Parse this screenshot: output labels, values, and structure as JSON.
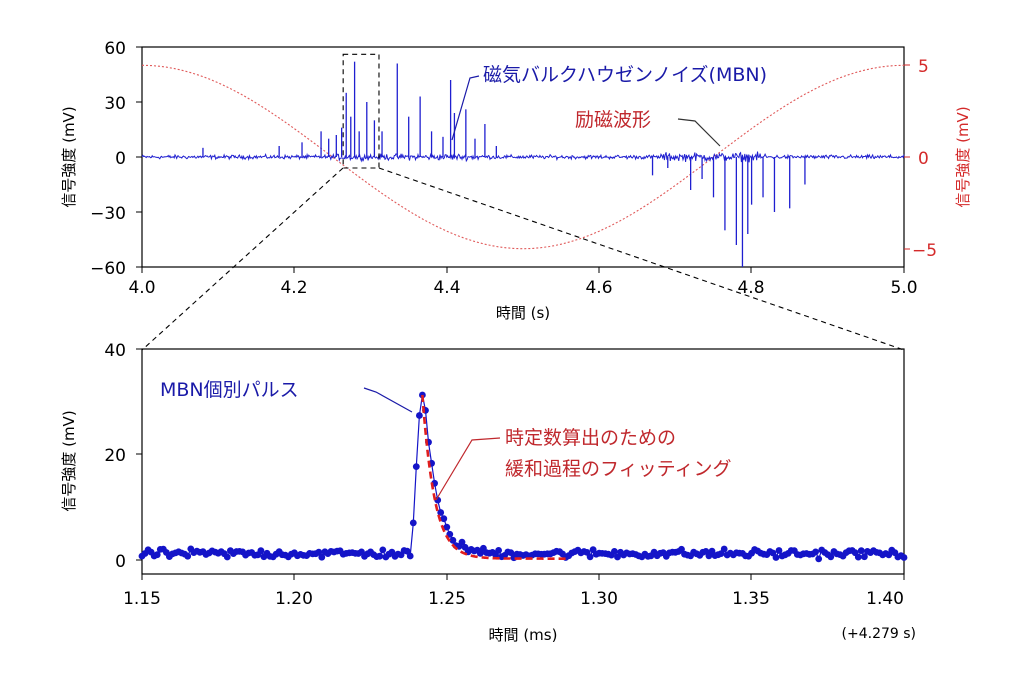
{
  "chart_data": [
    {
      "type": "line",
      "xlabel": "時間 (s)",
      "ylabel": "信号強度 (mV)",
      "ylabel_right": "信号強度 (mV)",
      "xlim": [
        4.0,
        5.0
      ],
      "ylim": [
        -60,
        60
      ],
      "ylim_right": [
        -6,
        6
      ],
      "x_ticks": [
        "4.0",
        "4.2",
        "4.4",
        "4.6",
        "4.8",
        "5.0"
      ],
      "y_ticks": [
        "60",
        "30",
        "0",
        "−30",
        "−60"
      ],
      "y_ticks_right": [
        "5",
        "0",
        "−5"
      ],
      "grid": false,
      "series": [
        {
          "name": "磁気バルクハウゼンノイズ(MBN)",
          "color": "#1f1fd0",
          "axis": "left",
          "noise_band": 1.5,
          "spikes_x": [
            4.08,
            4.18,
            4.21,
            4.235,
            4.245,
            4.255,
            4.262,
            4.268,
            4.274,
            4.279,
            4.285,
            4.295,
            4.305,
            4.315,
            4.335,
            4.35,
            4.365,
            4.38,
            4.395,
            4.405,
            4.41,
            4.425,
            4.437,
            4.45,
            4.465,
            4.67,
            4.69,
            4.72,
            4.735,
            4.75,
            4.765,
            4.78,
            4.788,
            4.795,
            4.8,
            4.815,
            4.83,
            4.85,
            4.87
          ],
          "spikes_y": [
            5,
            6,
            8,
            14,
            10,
            12,
            16,
            35,
            22,
            52,
            14,
            30,
            20,
            14,
            51,
            22,
            33,
            14,
            11,
            42,
            24,
            26,
            10,
            18,
            6,
            -10,
            -6,
            -18,
            -12,
            -22,
            -40,
            -48,
            -60,
            -42,
            -26,
            -22,
            -30,
            -28,
            -15
          ]
        },
        {
          "name": "励磁波形",
          "color": "#e05a5a",
          "axis": "right",
          "function": "sine",
          "amplitude": 5,
          "period": 1.0,
          "peak_x": 4.0
        }
      ],
      "zoom_box": {
        "x": [
          4.264,
          4.311
        ],
        "y": [
          -6,
          56
        ]
      },
      "annotations": [
        {
          "text": "磁気バルクハウゼンノイズ(MBN)",
          "color": "#1a1aa8"
        },
        {
          "text": "励磁波形",
          "color": "#c0282d"
        }
      ]
    },
    {
      "type": "line",
      "xlabel": "時間 (ms)",
      "ylabel": "信号強度 (mV)",
      "xlim": [
        1.15,
        1.4
      ],
      "ylim": [
        -4,
        40
      ],
      "x_ticks": [
        "1.15",
        "1.20",
        "1.25",
        "1.30",
        "1.35",
        "1.40"
      ],
      "y_ticks": [
        "40",
        "20",
        "0"
      ],
      "x_offset_note": "(+4.279 s)",
      "grid": false,
      "series": [
        {
          "name": "MBN個別パルス",
          "color": "#1414c8",
          "marker": "dot",
          "x_step": 0.001,
          "baseline_noise": 0.9,
          "pulse_start": 1.239,
          "pulse_x": [
            1.239,
            1.24,
            1.241,
            1.242,
            1.243
          ],
          "pulse_y": [
            6,
            17,
            27,
            31,
            28
          ],
          "decay_tau_ms": 0.004
        },
        {
          "name": "時定数算出のための緩和過程のフィッティング",
          "color": "#e01e1e",
          "style": "dashed",
          "x_start": 1.242,
          "x_end": 1.289,
          "amplitude": 31,
          "tau": 0.004,
          "offset": -1
        }
      ],
      "annotations": [
        {
          "text": "MBN個別パルス",
          "color": "#1a1aa8"
        },
        {
          "text": "時定数算出のための",
          "color": "#c0282d"
        },
        {
          "text": "緩和過程のフィッティング",
          "color": "#c0282d"
        }
      ]
    }
  ]
}
